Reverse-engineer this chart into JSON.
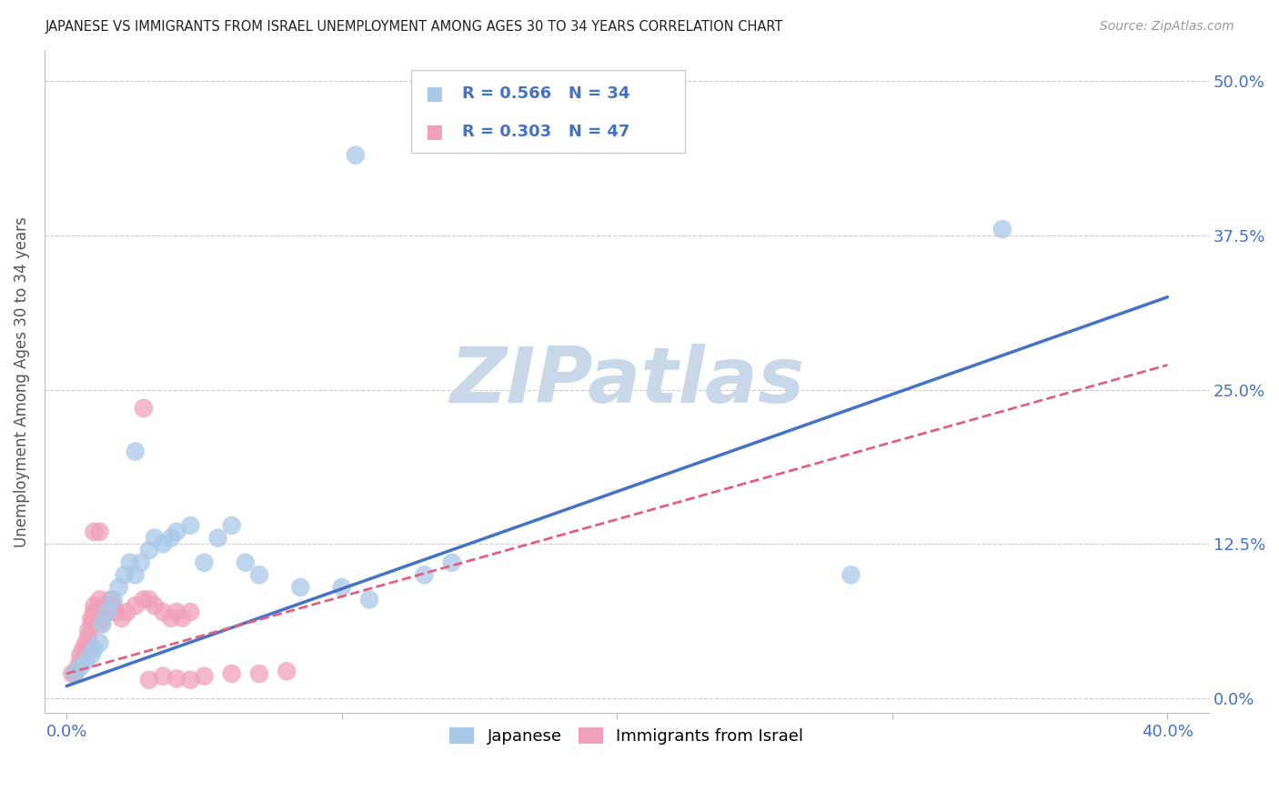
{
  "title": "JAPANESE VS IMMIGRANTS FROM ISRAEL UNEMPLOYMENT AMONG AGES 30 TO 34 YEARS CORRELATION CHART",
  "source": "Source: ZipAtlas.com",
  "ylabel": "Unemployment Among Ages 30 to 34 years",
  "legend_label1": "Japanese",
  "legend_label2": "Immigrants from Israel",
  "R1": "0.566",
  "N1": "34",
  "R2": "0.303",
  "N2": "47",
  "color_japanese": "#a8c8e8",
  "color_israel": "#f0a0b8",
  "color_japanese_line": "#4472c4",
  "color_israel_line": "#e06080",
  "background": "#ffffff",
  "watermark": "ZIPatlas",
  "watermark_color": "#c8d8e8",
  "xlim": [
    0.0,
    0.4
  ],
  "ylim": [
    0.0,
    0.5
  ],
  "x_ticks": [
    0.0,
    0.4
  ],
  "x_tick_labels": [
    "0.0%",
    "40.0%"
  ],
  "y_ticks": [
    0.0,
    0.125,
    0.25,
    0.375,
    0.5
  ],
  "y_tick_labels": [
    "0.0%",
    "12.5%",
    "25.0%",
    "37.5%",
    "50.0%"
  ],
  "japanese_points": [
    [
      0.003,
      0.02
    ],
    [
      0.005,
      0.025
    ],
    [
      0.007,
      0.03
    ],
    [
      0.009,
      0.035
    ],
    [
      0.01,
      0.04
    ],
    [
      0.012,
      0.045
    ],
    [
      0.013,
      0.06
    ],
    [
      0.015,
      0.07
    ],
    [
      0.017,
      0.08
    ],
    [
      0.019,
      0.09
    ],
    [
      0.021,
      0.1
    ],
    [
      0.023,
      0.11
    ],
    [
      0.025,
      0.1
    ],
    [
      0.027,
      0.11
    ],
    [
      0.03,
      0.12
    ],
    [
      0.032,
      0.13
    ],
    [
      0.035,
      0.125
    ],
    [
      0.038,
      0.13
    ],
    [
      0.04,
      0.135
    ],
    [
      0.045,
      0.14
    ],
    [
      0.05,
      0.11
    ],
    [
      0.055,
      0.13
    ],
    [
      0.06,
      0.14
    ],
    [
      0.065,
      0.11
    ],
    [
      0.07,
      0.1
    ],
    [
      0.085,
      0.09
    ],
    [
      0.1,
      0.09
    ],
    [
      0.11,
      0.08
    ],
    [
      0.13,
      0.1
    ],
    [
      0.14,
      0.11
    ],
    [
      0.285,
      0.1
    ],
    [
      0.105,
      0.44
    ],
    [
      0.34,
      0.38
    ],
    [
      0.025,
      0.2
    ]
  ],
  "israel_points": [
    [
      0.002,
      0.02
    ],
    [
      0.003,
      0.02
    ],
    [
      0.004,
      0.025
    ],
    [
      0.005,
      0.03
    ],
    [
      0.005,
      0.035
    ],
    [
      0.006,
      0.04
    ],
    [
      0.007,
      0.04
    ],
    [
      0.007,
      0.045
    ],
    [
      0.008,
      0.05
    ],
    [
      0.008,
      0.055
    ],
    [
      0.009,
      0.06
    ],
    [
      0.009,
      0.065
    ],
    [
      0.01,
      0.07
    ],
    [
      0.01,
      0.075
    ],
    [
      0.011,
      0.07
    ],
    [
      0.011,
      0.065
    ],
    [
      0.012,
      0.06
    ],
    [
      0.012,
      0.08
    ],
    [
      0.013,
      0.075
    ],
    [
      0.013,
      0.065
    ],
    [
      0.014,
      0.07
    ],
    [
      0.015,
      0.075
    ],
    [
      0.016,
      0.08
    ],
    [
      0.017,
      0.075
    ],
    [
      0.018,
      0.07
    ],
    [
      0.02,
      0.065
    ],
    [
      0.022,
      0.07
    ],
    [
      0.025,
      0.075
    ],
    [
      0.028,
      0.08
    ],
    [
      0.03,
      0.08
    ],
    [
      0.032,
      0.075
    ],
    [
      0.035,
      0.07
    ],
    [
      0.038,
      0.065
    ],
    [
      0.04,
      0.07
    ],
    [
      0.042,
      0.065
    ],
    [
      0.045,
      0.07
    ],
    [
      0.01,
      0.135
    ],
    [
      0.012,
      0.135
    ],
    [
      0.028,
      0.235
    ],
    [
      0.03,
      0.015
    ],
    [
      0.035,
      0.018
    ],
    [
      0.04,
      0.016
    ],
    [
      0.045,
      0.015
    ],
    [
      0.05,
      0.018
    ],
    [
      0.06,
      0.02
    ],
    [
      0.07,
      0.02
    ],
    [
      0.08,
      0.022
    ]
  ],
  "blue_line": [
    [
      0.0,
      0.01
    ],
    [
      0.4,
      0.325
    ]
  ],
  "pink_line": [
    [
      0.0,
      0.02
    ],
    [
      0.4,
      0.27
    ]
  ]
}
